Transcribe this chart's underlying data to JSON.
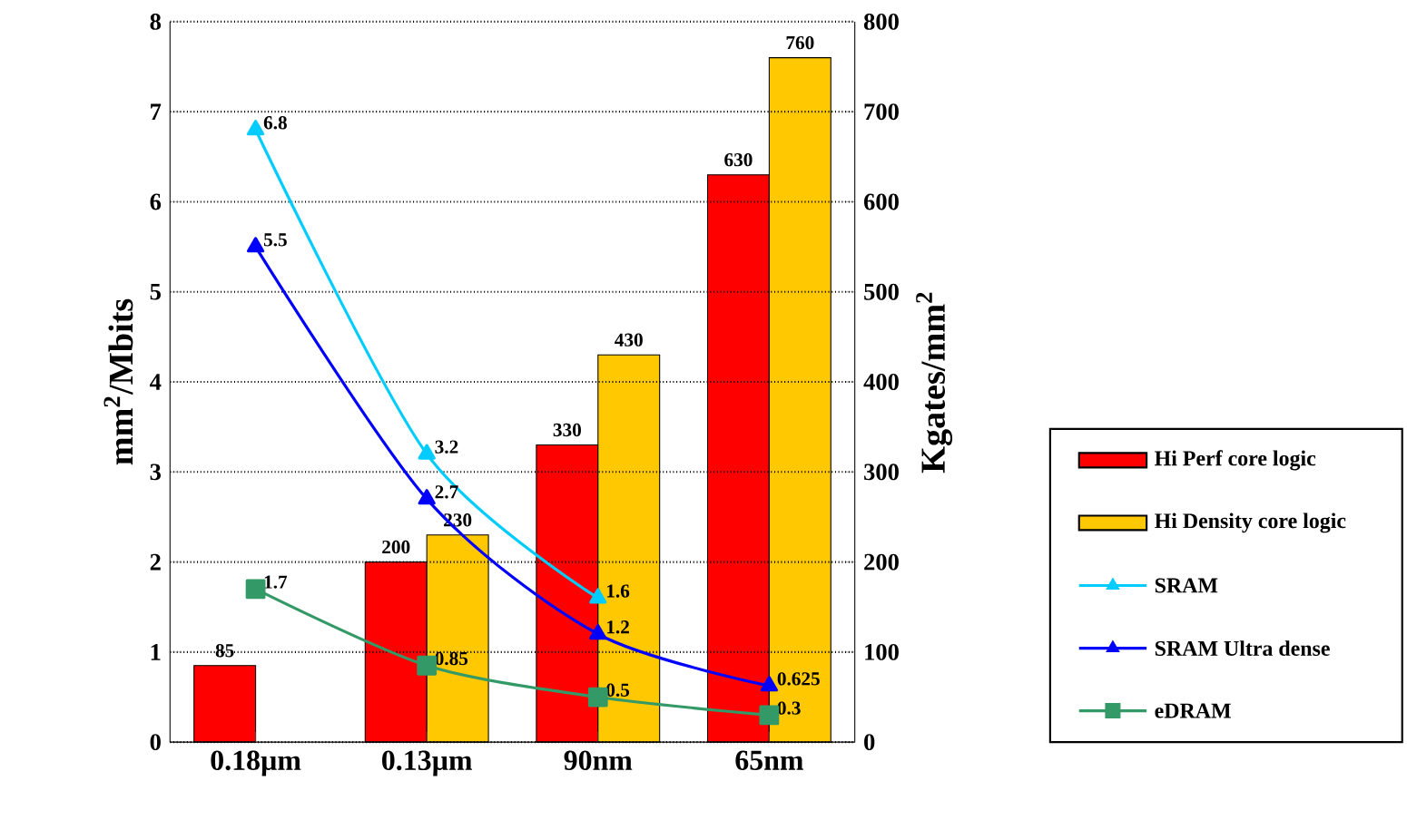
{
  "chart_data": {
    "type": "bar",
    "categories": [
      "0.18µm",
      "0.13µm",
      "90nm",
      "65nm"
    ],
    "ylabel": "mm$^{2}$/Mbits",
    "y2label": "Kgates/mm$^{2}$",
    "ylim": [
      0,
      8
    ],
    "yticks": [
      0,
      1,
      2,
      3,
      4,
      5,
      6,
      7,
      8
    ],
    "y2lim": [
      0,
      800
    ],
    "y2ticks": [
      0,
      100,
      200,
      300,
      400,
      500,
      600,
      700,
      800
    ],
    "grid": "y",
    "legend": "right",
    "data_labels": true,
    "series": [
      {
        "name": "Hi Perf core logic",
        "axis": "y2",
        "color": "#ff0000",
        "values": [
          85,
          200,
          330,
          630
        ]
      },
      {
        "name": "Hi Density core logic",
        "axis": "y2",
        "color": "#ffc800",
        "values": [
          null,
          230,
          430,
          760
        ]
      },
      {
        "name": "SRAM",
        "type": "line",
        "marker": "triangle",
        "color": "#00ccff",
        "values": [
          6.8,
          3.2,
          1.6,
          null
        ]
      },
      {
        "name": "SRAM Ultra dense",
        "type": "line",
        "marker": "triangle",
        "color": "#0000ff",
        "values": [
          5.5,
          2.7,
          1.2,
          0.625
        ]
      },
      {
        "name": "eDRAM",
        "type": "line",
        "marker": "square",
        "color": "#339966",
        "values": [
          1.7,
          0.85,
          0.5,
          0.3
        ]
      }
    ]
  }
}
